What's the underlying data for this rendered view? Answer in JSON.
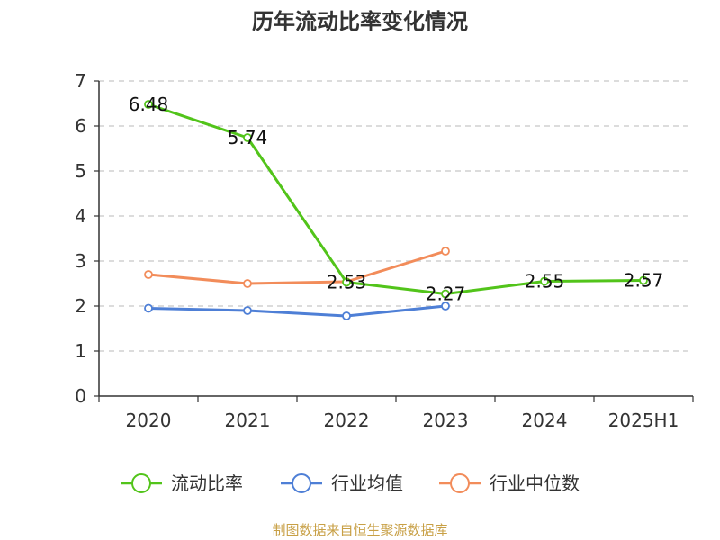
{
  "chart_data": {
    "type": "line",
    "title": "历年流动比率变化情况",
    "categories": [
      "2020",
      "2021",
      "2022",
      "2023",
      "2024",
      "2025H1"
    ],
    "ylim": [
      0,
      7
    ],
    "yticks": [
      "0",
      "1",
      "2",
      "3",
      "4",
      "5",
      "6",
      "7"
    ],
    "grid": true,
    "legend_position": "bottom",
    "series": [
      {
        "name": "流动比率",
        "color": "#52c41a",
        "values": [
          6.48,
          5.74,
          2.53,
          2.27,
          2.55,
          2.57
        ],
        "labels": [
          "6.48",
          "5.74",
          "2.53",
          "2.27",
          "2.55",
          "2.57"
        ]
      },
      {
        "name": "行业均值",
        "color": "#4e7fd6",
        "values": [
          1.95,
          1.9,
          1.78,
          2.0,
          null,
          null
        ]
      },
      {
        "name": "行业中位数",
        "color": "#f28c5a",
        "values": [
          2.7,
          2.5,
          2.54,
          3.22,
          null,
          null
        ]
      }
    ]
  },
  "source_text": "制图数据来自恒生聚源数据库",
  "source_color": "#c8a046"
}
